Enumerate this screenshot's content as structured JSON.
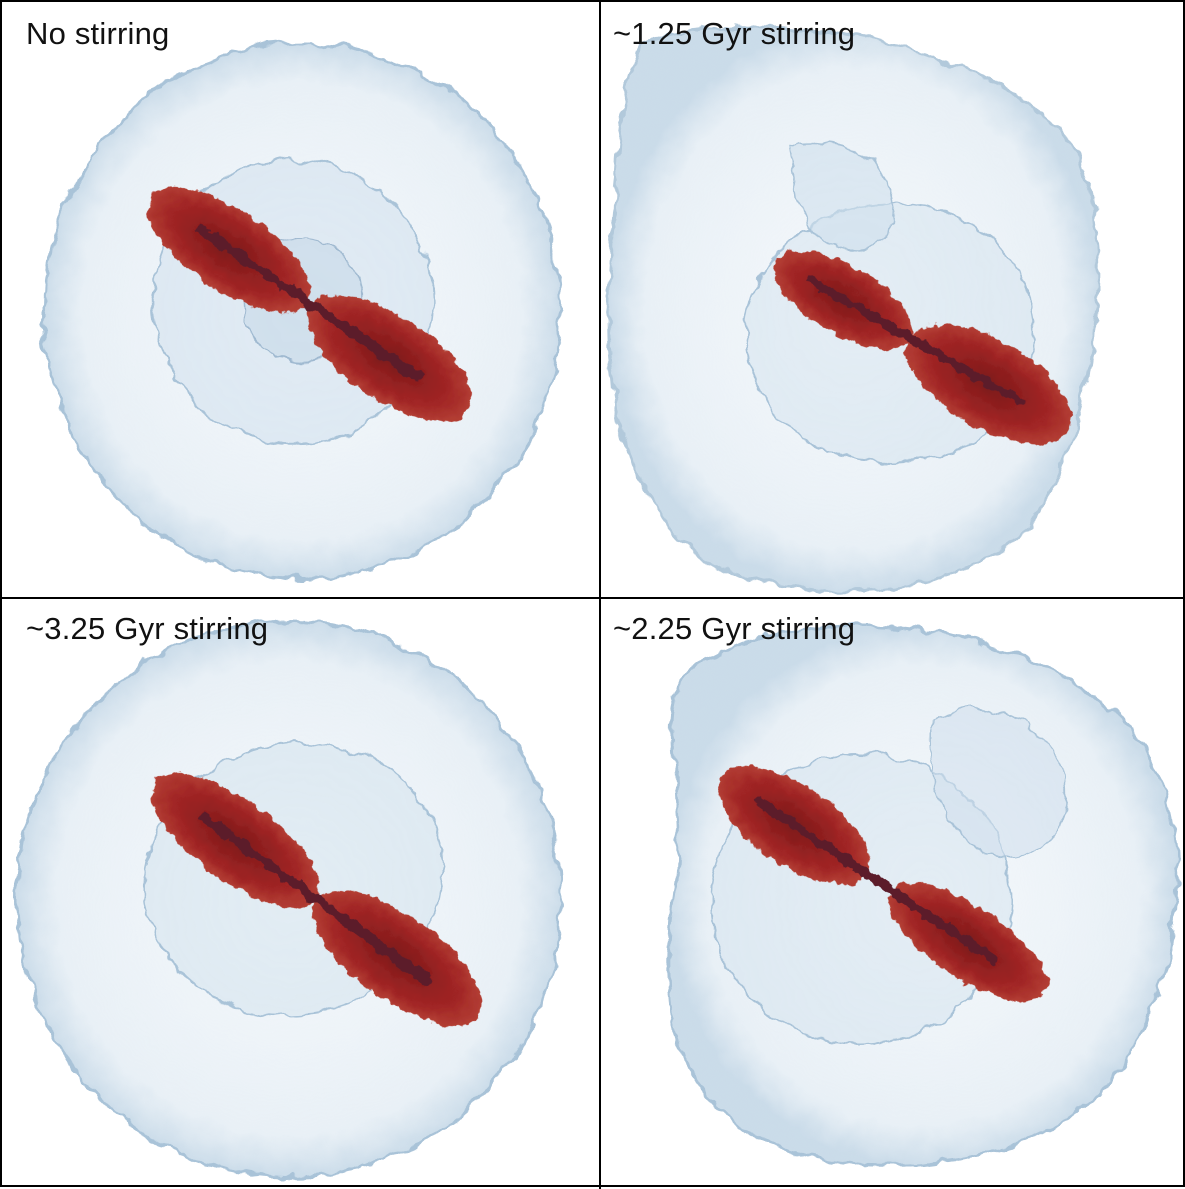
{
  "figure": {
    "panels": [
      {
        "id": "top-left",
        "label": "No stirring"
      },
      {
        "id": "top-right",
        "label": "~1.25 Gyr stirring"
      },
      {
        "id": "bottom-left",
        "label": "~3.25 Gyr stirring"
      },
      {
        "id": "bottom-right",
        "label": "~2.25 Gyr stirring"
      }
    ]
  },
  "colors": {
    "halo": "#dfeaf3",
    "halo_edge": "#9fbcd4",
    "inner_shell": "#c9dbea",
    "bar_dark": "#8e1e1e",
    "bar_light": "#c0392b",
    "border": "#000000"
  }
}
